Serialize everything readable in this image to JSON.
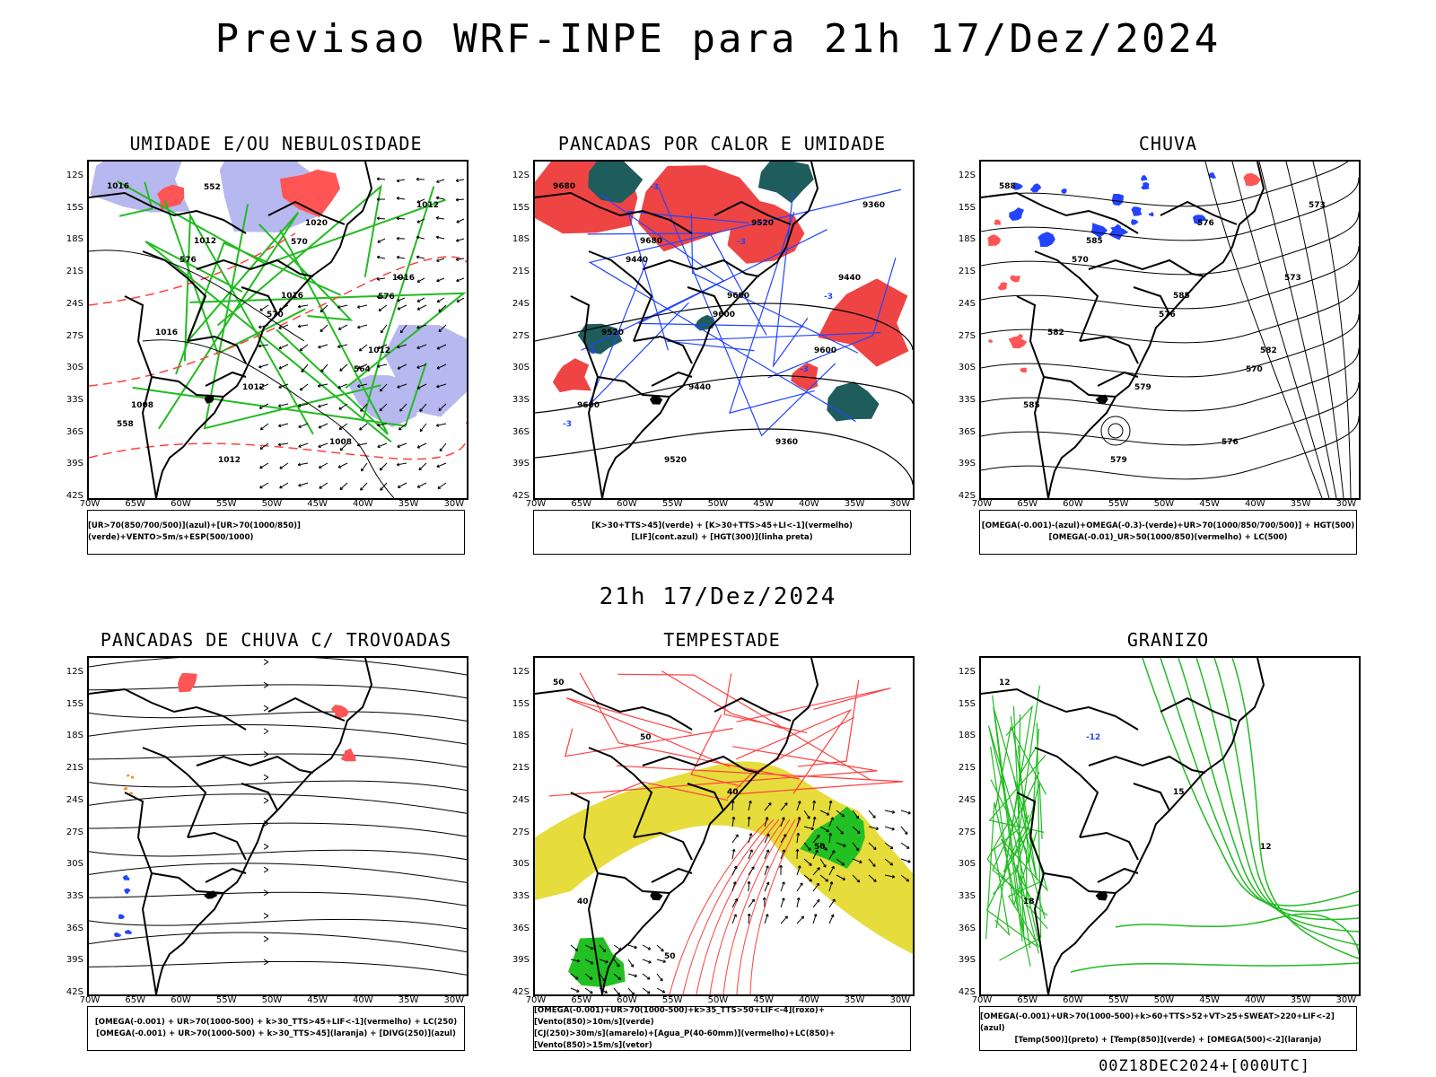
{
  "title": "Previsao WRF-INPE  para 21h 17/Dez/2024",
  "subtitle": "21h 17/Dez/2024",
  "footer": "00Z18DEC2024+[000UTC]",
  "axes": {
    "lat_labels": [
      "12S",
      "15S",
      "18S",
      "21S",
      "24S",
      "27S",
      "30S",
      "33S",
      "36S",
      "39S",
      "42S"
    ],
    "lon_labels": [
      "70W",
      "65W",
      "60W",
      "55W",
      "50W",
      "45W",
      "40W",
      "35W",
      "30W"
    ]
  },
  "colors": {
    "green": "#22bb22",
    "red": "#ff4040",
    "blue": "#2244ff",
    "lavender": "#b8b8f0",
    "darkteal": "#1f5c5c",
    "yellow": "#e6dc3c",
    "black": "#000000",
    "orange": "#ff8800"
  },
  "panels": [
    {
      "id": "umidade",
      "title": "UMIDADE E/OU NEBULOSIDADE",
      "legend": [
        "[UR>70(850/700/500)](azul)+[UR>70(1000/850)](verde)+VENTO>5m/s+ESP(500/1000)"
      ],
      "contour_labels": [
        "1016",
        "1012",
        "1016",
        "1012",
        "1008",
        "1012",
        "1020",
        "1016",
        "1016",
        "1012",
        "1008",
        "1012",
        "576",
        "570",
        "564",
        "558",
        "552",
        "570",
        "576"
      ]
    },
    {
      "id": "pancadas_calor",
      "title": "PANCADAS POR CALOR E UMIDADE",
      "legend": [
        "[K>30+TTS>45](verde) + [K>30+TTS>45+LI<-1](vermelho)",
        "[LIF](cont.azul) + [HGT(300)](linha preta)"
      ],
      "contour_labels": [
        "9680",
        "9680",
        "9600",
        "9600",
        "9600",
        "9520",
        "9520",
        "9440",
        "9520",
        "9440",
        "9360",
        "9360",
        "9440",
        "9600",
        "-3",
        "-3",
        "-3",
        "-3",
        "-3",
        "-3"
      ]
    },
    {
      "id": "chuva",
      "title": "CHUVA",
      "legend": [
        "[OMEGA(-0.001)-(azul)+OMEGA(-0.3)-(verde)+UR>70(1000/850/700/500)] + HGT(500)",
        "[OMEGA(-0.01)_UR>50(1000/850)(vermelho) + LC(500)"
      ],
      "contour_labels": [
        "588",
        "585",
        "585",
        "582",
        "585",
        "579",
        "576",
        "573",
        "582",
        "579",
        "576",
        "573",
        "570",
        "576",
        "570"
      ]
    },
    {
      "id": "trovoadas",
      "title": "PANCADAS DE CHUVA C/ TROVOADAS",
      "legend": [
        "[OMEGA(-0.001) + UR>70(1000-500) + k>30_TTS>45+LIF<-1](vermelho) + LC(250)",
        "[OMEGA(-0.001) + UR>70(1000-500) + k>30_TTS>45](laranja) + [DIVG(250)](azul)"
      ],
      "contour_labels": []
    },
    {
      "id": "tempestade",
      "title": "TEMPESTADE",
      "legend": [
        "[OMEGA(-0.001)+UR>70(1000-500)+k>35_TTS>50+LIF<-4](roxo)+[Vento(850)>10m/s](verde)",
        "[CJ(250)>30m/s](amarelo)+[Agua_P(40-60mm)](vermelho)+LC(850)+[Vento(850)>15m/s](vetor)"
      ],
      "contour_labels": [
        "50",
        "50",
        "40",
        "50",
        "40",
        "50"
      ]
    },
    {
      "id": "granizo",
      "title": "GRANIZO",
      "legend": [
        "[OMEGA(-0.001)+UR>70(1000-500)+k>60+TTS>52+VT>25+SWEAT>220+LIF<-2](azul)",
        "[Temp(500)](preto) + [Temp(850)](verde) + [OMEGA(500)<-2](laranja)"
      ],
      "contour_labels": [
        "12",
        "-12",
        "15",
        "12",
        "18"
      ]
    }
  ]
}
